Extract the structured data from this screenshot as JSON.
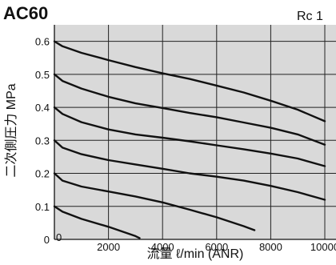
{
  "title": "AC60",
  "port_label": "Rc 1",
  "chart_data": {
    "type": "line",
    "title": "AC60",
    "xlabel": "流量 ℓ/min (ANR)",
    "ylabel": "二次側圧力 MPa",
    "xlim": [
      0,
      10500
    ],
    "ylim": [
      0,
      0.65
    ],
    "x_ticks": [
      0,
      2000,
      4000,
      6000,
      8000,
      10000
    ],
    "y_ticks": [
      0,
      0.1,
      0.2,
      0.3,
      0.4,
      0.5,
      0.6
    ],
    "x_tick_labels": [
      "0",
      "2000",
      "4000",
      "6000",
      "8000",
      "10000"
    ],
    "y_tick_labels": [
      "0",
      "0.1",
      "0.2",
      "0.3",
      "0.4",
      "0.5",
      "0.6"
    ],
    "grid": true,
    "legend": "none",
    "series": [
      {
        "x": [
          0,
          300,
          1000,
          2000,
          3000,
          4000,
          5000,
          6000,
          7000,
          8000,
          9000,
          10000
        ],
        "y": [
          0.6,
          0.585,
          0.565,
          0.543,
          0.522,
          0.503,
          0.486,
          0.466,
          0.445,
          0.42,
          0.393,
          0.358
        ]
      },
      {
        "x": [
          0,
          300,
          1000,
          2000,
          3000,
          4000,
          5000,
          6000,
          7000,
          8000,
          9000,
          10000
        ],
        "y": [
          0.5,
          0.48,
          0.457,
          0.432,
          0.412,
          0.398,
          0.383,
          0.37,
          0.354,
          0.338,
          0.318,
          0.287
        ]
      },
      {
        "x": [
          0,
          300,
          1000,
          2000,
          3000,
          4000,
          5000,
          6000,
          7000,
          8000,
          9000,
          10000
        ],
        "y": [
          0.4,
          0.38,
          0.355,
          0.333,
          0.318,
          0.308,
          0.297,
          0.285,
          0.273,
          0.26,
          0.245,
          0.222
        ]
      },
      {
        "x": [
          0,
          300,
          1000,
          2000,
          3000,
          4000,
          5000,
          6000,
          7000,
          8000,
          9000,
          10000
        ],
        "y": [
          0.3,
          0.278,
          0.258,
          0.24,
          0.227,
          0.214,
          0.2,
          0.19,
          0.178,
          0.162,
          0.143,
          0.12
        ]
      },
      {
        "x": [
          0,
          300,
          1000,
          2000,
          3000,
          4000,
          5000,
          6000,
          7000,
          7400
        ],
        "y": [
          0.2,
          0.178,
          0.16,
          0.145,
          0.13,
          0.112,
          0.09,
          0.067,
          0.04,
          0.028
        ]
      },
      {
        "x": [
          0,
          300,
          1000,
          2000,
          3000,
          3150
        ],
        "y": [
          0.1,
          0.084,
          0.062,
          0.038,
          0.01,
          0.004
        ]
      }
    ]
  }
}
